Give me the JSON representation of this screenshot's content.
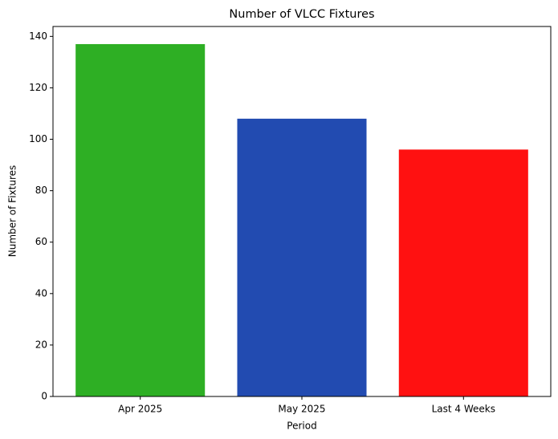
{
  "chart_data": {
    "type": "bar",
    "title": "Number of VLCC Fixtures",
    "x_label": "Period",
    "y_label": "Number of Fixtures",
    "categories": [
      "Apr 2025",
      "May 2025",
      "Last 4 Weeks"
    ],
    "values": [
      137,
      108,
      96
    ],
    "colors": [
      "#2eaf24",
      "#224bb1",
      "#ff1111"
    ],
    "ylim": [
      0,
      143.85
    ],
    "yticks": [
      0,
      20,
      40,
      60,
      80,
      100,
      120,
      140
    ]
  }
}
